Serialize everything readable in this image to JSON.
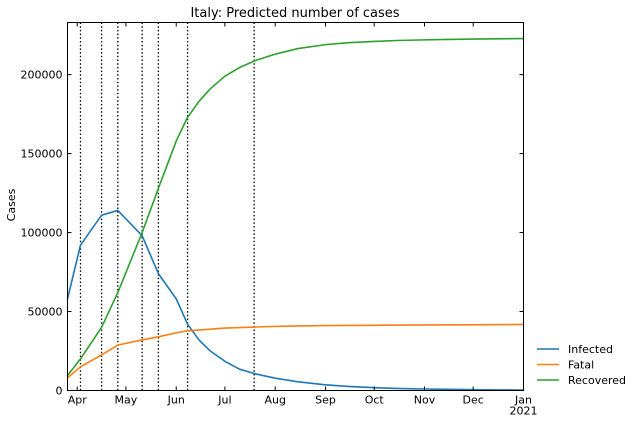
{
  "chart_data": {
    "type": "line",
    "title": "Italy: Predicted number of cases",
    "xlabel": "",
    "ylabel": "Cases",
    "x_axis": {
      "type": "date",
      "range": [
        "2020-03-26",
        "2021-01-01"
      ],
      "ticks": [
        {
          "date": "2020-04-01",
          "label": "Apr"
        },
        {
          "date": "2020-05-01",
          "label": "May"
        },
        {
          "date": "2020-06-01",
          "label": "Jun"
        },
        {
          "date": "2020-07-01",
          "label": "Jul"
        },
        {
          "date": "2020-08-01",
          "label": "Aug"
        },
        {
          "date": "2020-09-01",
          "label": "Sep"
        },
        {
          "date": "2020-10-01",
          "label": "Oct"
        },
        {
          "date": "2020-11-01",
          "label": "Nov"
        },
        {
          "date": "2020-12-01",
          "label": "Dec"
        },
        {
          "date": "2021-01-01",
          "label": "Jan",
          "sublabel": "2021"
        }
      ]
    },
    "ylim": [
      0,
      233000
    ],
    "yticks": [
      0,
      50000,
      100000,
      150000,
      200000
    ],
    "grid": false,
    "legend_position": "outside-bottom-right",
    "vlines": [
      "2020-04-03",
      "2020-04-16",
      "2020-04-26",
      "2020-05-11",
      "2020-05-21",
      "2020-06-08",
      "2020-07-19"
    ],
    "series": [
      {
        "name": "Infected",
        "color": "#1f77b4",
        "points": [
          [
            "2020-03-26",
            58000
          ],
          [
            "2020-04-03",
            92000
          ],
          [
            "2020-04-16",
            111000
          ],
          [
            "2020-04-26",
            114000
          ],
          [
            "2020-05-11",
            98000
          ],
          [
            "2020-05-21",
            74000
          ],
          [
            "2020-06-01",
            58000
          ],
          [
            "2020-06-08",
            42000
          ],
          [
            "2020-06-15",
            32000
          ],
          [
            "2020-06-22",
            25000
          ],
          [
            "2020-07-01",
            18500
          ],
          [
            "2020-07-10",
            13500
          ],
          [
            "2020-07-20",
            10500
          ],
          [
            "2020-08-01",
            7800
          ],
          [
            "2020-08-15",
            5500
          ],
          [
            "2020-09-01",
            3600
          ],
          [
            "2020-09-15",
            2600
          ],
          [
            "2020-10-01",
            1800
          ],
          [
            "2020-10-15",
            1300
          ],
          [
            "2020-11-01",
            950
          ],
          [
            "2020-11-15",
            750
          ],
          [
            "2020-12-01",
            550
          ],
          [
            "2020-12-15",
            400
          ],
          [
            "2021-01-01",
            300
          ]
        ]
      },
      {
        "name": "Fatal",
        "color": "#ff7f0e",
        "points": [
          [
            "2020-03-26",
            8000
          ],
          [
            "2020-04-03",
            15000
          ],
          [
            "2020-04-16",
            22500
          ],
          [
            "2020-04-26",
            28800
          ],
          [
            "2020-05-11",
            32000
          ],
          [
            "2020-05-21",
            34000
          ],
          [
            "2020-06-01",
            36500
          ],
          [
            "2020-06-08",
            37800
          ],
          [
            "2020-06-22",
            38800
          ],
          [
            "2020-07-01",
            39500
          ],
          [
            "2020-07-20",
            40200
          ],
          [
            "2020-08-01",
            40600
          ],
          [
            "2020-08-15",
            40900
          ],
          [
            "2020-09-01",
            41100
          ],
          [
            "2020-09-15",
            41200
          ],
          [
            "2020-10-01",
            41300
          ],
          [
            "2020-11-01",
            41500
          ],
          [
            "2020-12-01",
            41600
          ],
          [
            "2021-01-01",
            41800
          ]
        ]
      },
      {
        "name": "Recovered",
        "color": "#2ca02c",
        "points": [
          [
            "2020-03-26",
            9500
          ],
          [
            "2020-04-03",
            20000
          ],
          [
            "2020-04-16",
            40000
          ],
          [
            "2020-04-26",
            62000
          ],
          [
            "2020-05-11",
            100000
          ],
          [
            "2020-05-21",
            128000
          ],
          [
            "2020-06-01",
            158000
          ],
          [
            "2020-06-08",
            173000
          ],
          [
            "2020-06-15",
            183000
          ],
          [
            "2020-06-22",
            191000
          ],
          [
            "2020-07-01",
            199000
          ],
          [
            "2020-07-10",
            204500
          ],
          [
            "2020-07-20",
            209000
          ],
          [
            "2020-08-01",
            213000
          ],
          [
            "2020-08-15",
            216500
          ],
          [
            "2020-09-01",
            219000
          ],
          [
            "2020-09-15",
            220200
          ],
          [
            "2020-10-01",
            221000
          ],
          [
            "2020-10-15",
            221600
          ],
          [
            "2020-11-01",
            222000
          ],
          [
            "2020-11-15",
            222300
          ],
          [
            "2020-12-01",
            222500
          ],
          [
            "2020-12-15",
            222700
          ],
          [
            "2021-01-01",
            222800
          ]
        ]
      }
    ]
  }
}
